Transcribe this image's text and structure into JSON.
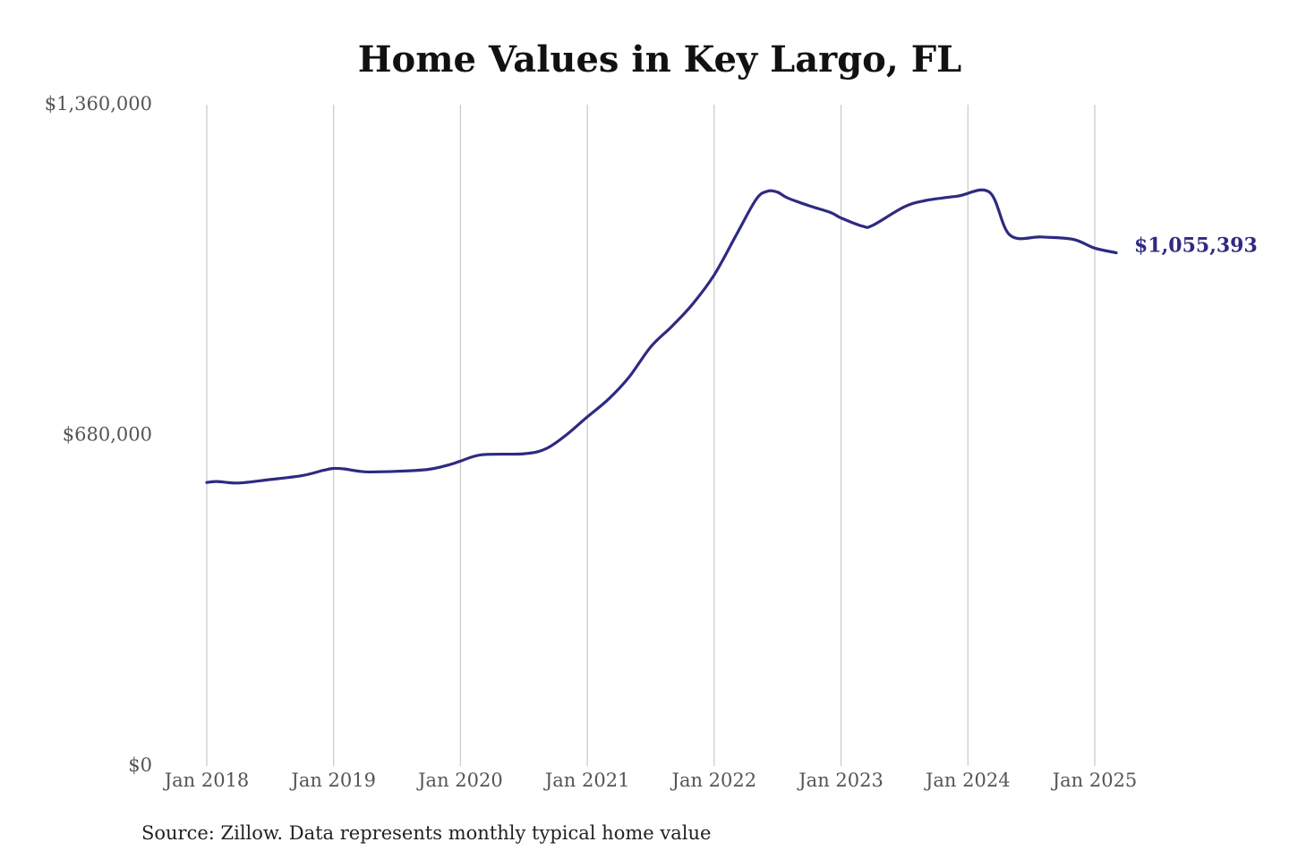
{
  "chart_data": {
    "type": "line",
    "title": "Home Values in Key Largo, FL",
    "xlabel": "",
    "ylabel": "",
    "ylim": [
      0,
      1360000
    ],
    "y_ticks": [
      {
        "value": 0,
        "label": "$0"
      },
      {
        "value": 680000,
        "label": "$680,000"
      },
      {
        "value": 1360000,
        "label": "$1,360,000"
      }
    ],
    "x_range": [
      2018.0,
      2025.17
    ],
    "x_ticks": [
      {
        "value": 2018,
        "label": "Jan 2018"
      },
      {
        "value": 2019,
        "label": "Jan 2019"
      },
      {
        "value": 2020,
        "label": "Jan 2020"
      },
      {
        "value": 2021,
        "label": "Jan 2021"
      },
      {
        "value": 2022,
        "label": "Jan 2022"
      },
      {
        "value": 2023,
        "label": "Jan 2023"
      },
      {
        "value": 2024,
        "label": "Jan 2024"
      },
      {
        "value": 2025,
        "label": "Jan 2025"
      }
    ],
    "grid": "vertical lines at x ticks",
    "series": [
      {
        "color": "#2e2a82",
        "x": [
          2018.0,
          2018.08,
          2018.25,
          2018.5,
          2018.75,
          2018.92,
          2019.0,
          2019.08,
          2019.25,
          2019.5,
          2019.75,
          2019.92,
          2020.0,
          2020.17,
          2020.5,
          2020.67,
          2020.83,
          2021.0,
          2021.17,
          2021.33,
          2021.5,
          2021.67,
          2021.83,
          2022.0,
          2022.17,
          2022.33,
          2022.42,
          2022.5,
          2022.58,
          2022.75,
          2022.92,
          2023.0,
          2023.17,
          2023.25,
          2023.5,
          2023.67,
          2023.92,
          2024.17,
          2024.33,
          2024.58,
          2024.83,
          2025.0,
          2025.17
        ],
        "y": [
          583000,
          585000,
          582000,
          589000,
          597000,
          608000,
          612000,
          611000,
          605000,
          606000,
          610000,
          620000,
          627000,
          640000,
          642000,
          652000,
          680000,
          718000,
          755000,
          800000,
          862000,
          905000,
          950000,
          1010000,
          1090000,
          1165000,
          1182000,
          1180000,
          1168000,
          1152000,
          1138000,
          1127000,
          1110000,
          1112000,
          1150000,
          1163000,
          1172000,
          1180000,
          1092000,
          1088000,
          1083000,
          1065000,
          1055393
        ]
      }
    ],
    "series_fix": "values listed above",
    "end_label": "$1,055,393",
    "source_note": "Source: Zillow. Data represents monthly typical home value"
  }
}
